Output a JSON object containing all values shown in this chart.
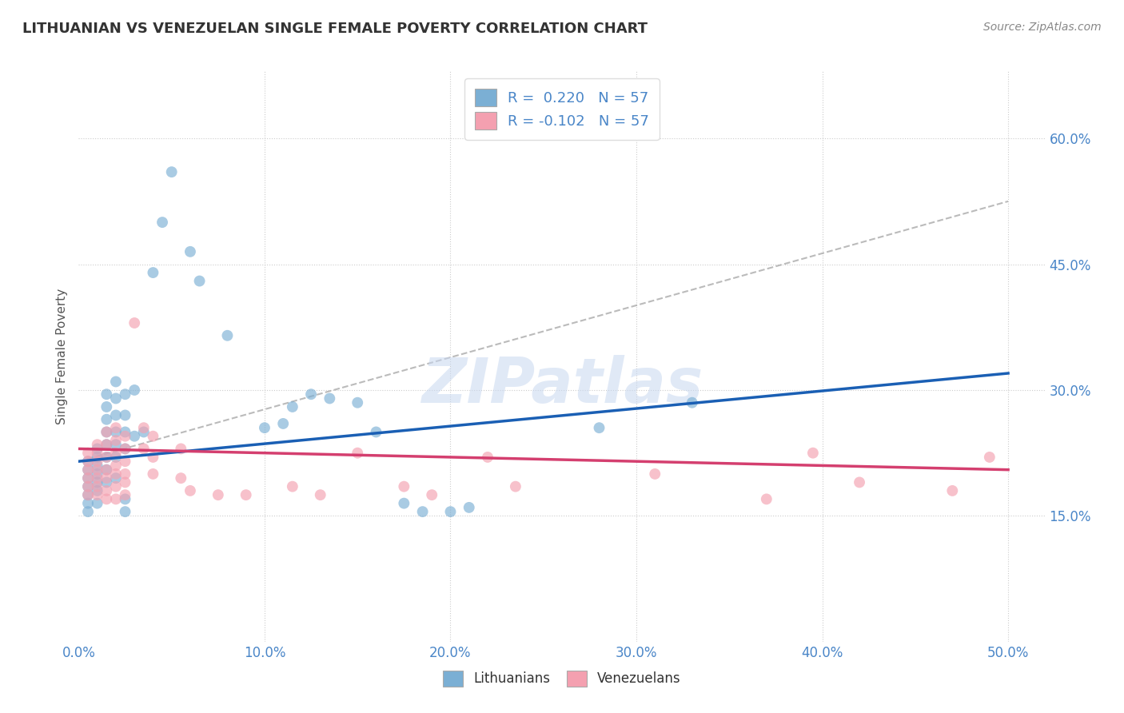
{
  "title": "LITHUANIAN VS VENEZUELAN SINGLE FEMALE POVERTY CORRELATION CHART",
  "source": "Source: ZipAtlas.com",
  "ylabel": "Single Female Poverty",
  "xlim": [
    0.0,
    0.52
  ],
  "ylim": [
    0.0,
    0.68
  ],
  "xticks": [
    0.0,
    0.1,
    0.2,
    0.3,
    0.4,
    0.5
  ],
  "xticklabels": [
    "0.0%",
    "10.0%",
    "20.0%",
    "30.0%",
    "40.0%",
    "50.0%"
  ],
  "yticks": [
    0.15,
    0.3,
    0.45,
    0.6
  ],
  "yticklabels": [
    "15.0%",
    "30.0%",
    "45.0%",
    "60.0%"
  ],
  "grid_color": "#cccccc",
  "background_color": "#ffffff",
  "watermark": "ZIPatlas",
  "legend_r_blue": "R =  0.220",
  "legend_n_blue": "N = 57",
  "legend_r_pink": "R = -0.102",
  "legend_n_pink": "N = 57",
  "blue_color": "#7bafd4",
  "pink_color": "#f4a0b0",
  "blue_line_color": "#1a5fb4",
  "pink_line_color": "#d43f6f",
  "dashed_line_color": "#aaaaaa",
  "title_color": "#333333",
  "axis_label_color": "#4a86c8",
  "legend_text_color": "#4a86c8",
  "blue_scatter": [
    [
      0.005,
      0.215
    ],
    [
      0.005,
      0.205
    ],
    [
      0.005,
      0.195
    ],
    [
      0.005,
      0.185
    ],
    [
      0.005,
      0.175
    ],
    [
      0.005,
      0.165
    ],
    [
      0.005,
      0.155
    ],
    [
      0.01,
      0.23
    ],
    [
      0.01,
      0.22
    ],
    [
      0.01,
      0.21
    ],
    [
      0.01,
      0.2
    ],
    [
      0.01,
      0.19
    ],
    [
      0.01,
      0.18
    ],
    [
      0.01,
      0.165
    ],
    [
      0.015,
      0.295
    ],
    [
      0.015,
      0.28
    ],
    [
      0.015,
      0.265
    ],
    [
      0.015,
      0.25
    ],
    [
      0.015,
      0.235
    ],
    [
      0.015,
      0.22
    ],
    [
      0.015,
      0.205
    ],
    [
      0.015,
      0.19
    ],
    [
      0.02,
      0.31
    ],
    [
      0.02,
      0.29
    ],
    [
      0.02,
      0.27
    ],
    [
      0.02,
      0.25
    ],
    [
      0.02,
      0.235
    ],
    [
      0.02,
      0.22
    ],
    [
      0.02,
      0.195
    ],
    [
      0.025,
      0.295
    ],
    [
      0.025,
      0.27
    ],
    [
      0.025,
      0.25
    ],
    [
      0.025,
      0.23
    ],
    [
      0.025,
      0.17
    ],
    [
      0.025,
      0.155
    ],
    [
      0.03,
      0.3
    ],
    [
      0.03,
      0.245
    ],
    [
      0.035,
      0.25
    ],
    [
      0.04,
      0.44
    ],
    [
      0.045,
      0.5
    ],
    [
      0.05,
      0.56
    ],
    [
      0.06,
      0.465
    ],
    [
      0.065,
      0.43
    ],
    [
      0.08,
      0.365
    ],
    [
      0.1,
      0.255
    ],
    [
      0.11,
      0.26
    ],
    [
      0.115,
      0.28
    ],
    [
      0.125,
      0.295
    ],
    [
      0.135,
      0.29
    ],
    [
      0.15,
      0.285
    ],
    [
      0.16,
      0.25
    ],
    [
      0.175,
      0.165
    ],
    [
      0.185,
      0.155
    ],
    [
      0.2,
      0.155
    ],
    [
      0.21,
      0.16
    ],
    [
      0.28,
      0.255
    ],
    [
      0.33,
      0.285
    ]
  ],
  "pink_scatter": [
    [
      0.005,
      0.225
    ],
    [
      0.005,
      0.215
    ],
    [
      0.005,
      0.205
    ],
    [
      0.005,
      0.195
    ],
    [
      0.005,
      0.185
    ],
    [
      0.005,
      0.175
    ],
    [
      0.01,
      0.235
    ],
    [
      0.01,
      0.225
    ],
    [
      0.01,
      0.215
    ],
    [
      0.01,
      0.205
    ],
    [
      0.01,
      0.195
    ],
    [
      0.01,
      0.185
    ],
    [
      0.01,
      0.175
    ],
    [
      0.015,
      0.25
    ],
    [
      0.015,
      0.235
    ],
    [
      0.015,
      0.22
    ],
    [
      0.015,
      0.205
    ],
    [
      0.015,
      0.195
    ],
    [
      0.015,
      0.18
    ],
    [
      0.015,
      0.17
    ],
    [
      0.02,
      0.255
    ],
    [
      0.02,
      0.24
    ],
    [
      0.02,
      0.225
    ],
    [
      0.02,
      0.21
    ],
    [
      0.02,
      0.2
    ],
    [
      0.02,
      0.185
    ],
    [
      0.02,
      0.17
    ],
    [
      0.025,
      0.245
    ],
    [
      0.025,
      0.23
    ],
    [
      0.025,
      0.215
    ],
    [
      0.025,
      0.2
    ],
    [
      0.025,
      0.19
    ],
    [
      0.025,
      0.175
    ],
    [
      0.03,
      0.38
    ],
    [
      0.035,
      0.255
    ],
    [
      0.035,
      0.23
    ],
    [
      0.04,
      0.245
    ],
    [
      0.04,
      0.22
    ],
    [
      0.04,
      0.2
    ],
    [
      0.055,
      0.23
    ],
    [
      0.055,
      0.195
    ],
    [
      0.06,
      0.18
    ],
    [
      0.075,
      0.175
    ],
    [
      0.09,
      0.175
    ],
    [
      0.115,
      0.185
    ],
    [
      0.13,
      0.175
    ],
    [
      0.15,
      0.225
    ],
    [
      0.175,
      0.185
    ],
    [
      0.19,
      0.175
    ],
    [
      0.22,
      0.22
    ],
    [
      0.235,
      0.185
    ],
    [
      0.31,
      0.2
    ],
    [
      0.37,
      0.17
    ],
    [
      0.395,
      0.225
    ],
    [
      0.42,
      0.19
    ],
    [
      0.47,
      0.18
    ],
    [
      0.49,
      0.22
    ]
  ],
  "blue_line": [
    [
      0.0,
      0.215
    ],
    [
      0.5,
      0.32
    ]
  ],
  "pink_line": [
    [
      0.0,
      0.23
    ],
    [
      0.5,
      0.205
    ]
  ],
  "dashed_line": [
    [
      0.0,
      0.215
    ],
    [
      0.5,
      0.525
    ]
  ]
}
